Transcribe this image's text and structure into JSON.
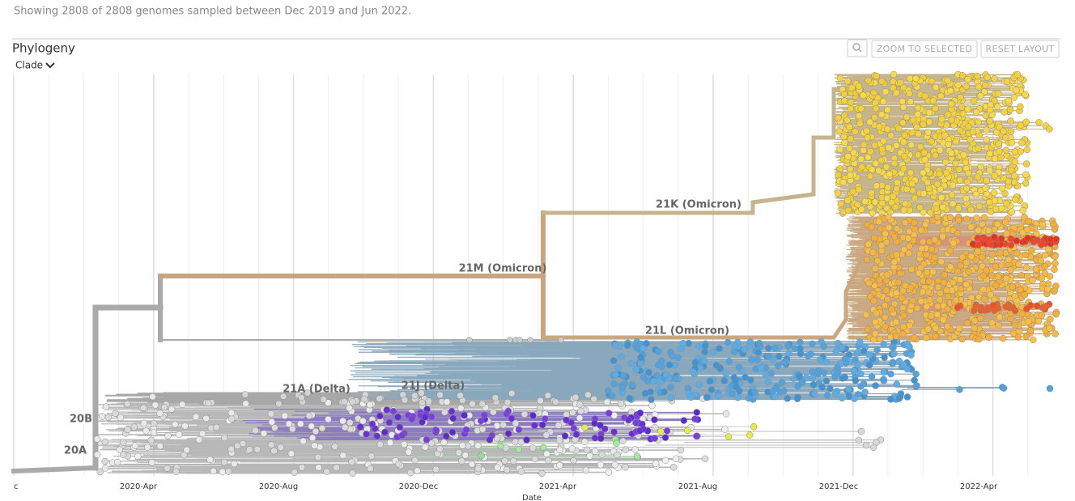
{
  "header": {
    "summary": "Showing 2808 of 2808 genomes sampled between Dec 2019 and Jun 2022."
  },
  "panel": {
    "title": "Phylogeny",
    "color_by": "Clade",
    "buttons": [
      "ZOOM TO SELECTED",
      "RESET LAYOUT"
    ]
  },
  "tree": {
    "clade_labels": [
      "21K (Omicron)",
      "21M (Omicron)",
      "21L (Omicron)",
      "21A (Delta)",
      "21J (Delta)",
      "20B",
      "20A"
    ],
    "axis": {
      "ticks": [
        "c",
        "2020-Apr",
        "2020-Aug",
        "2020-Dec",
        "2021-Apr",
        "2021-Aug",
        "2021-Dec",
        "2022-Apr"
      ],
      "title": "Date"
    }
  }
}
